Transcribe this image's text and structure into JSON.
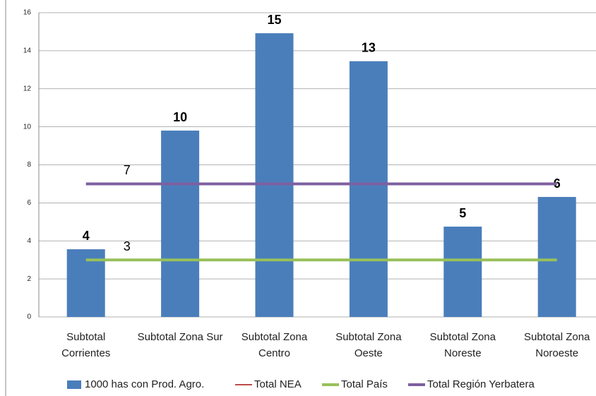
{
  "chart_data": {
    "type": "bar",
    "categories": [
      [
        "Subtotal",
        "Corrientes"
      ],
      [
        "Subtotal Zona Sur"
      ],
      [
        "Subtotal Zona",
        "Centro"
      ],
      [
        "Subtotal Zona",
        "Oeste"
      ],
      [
        "Subtotal Zona",
        "Noreste"
      ],
      [
        "Subtotal Zona",
        "Noroeste"
      ]
    ],
    "series": [
      {
        "name": "1000 has con Prod. Agro.",
        "type": "bar",
        "color": "#4a7ebb",
        "values": [
          3.56,
          9.8,
          14.92,
          13.45,
          4.75,
          6.31
        ],
        "value_labels": [
          "4",
          "10",
          "15",
          "13",
          "5",
          "6"
        ]
      },
      {
        "name": "Total NEA",
        "type": "line",
        "color": "#be4b48",
        "values": [
          null,
          null,
          null,
          null,
          null,
          null
        ]
      },
      {
        "name": "Total País",
        "type": "line",
        "color": "#98c05a",
        "values": [
          3,
          3,
          3,
          3,
          3,
          3
        ],
        "value_labels": [
          "3",
          null,
          null,
          null,
          null,
          null
        ]
      },
      {
        "name": "Total Región Yerbatera",
        "type": "line",
        "color": "#7d60a0",
        "values": [
          7,
          7,
          7,
          7,
          7,
          7
        ],
        "value_labels": [
          "7",
          null,
          null,
          null,
          null,
          null
        ]
      }
    ],
    "ylim": [
      0,
      16
    ],
    "yticks": [
      0,
      2,
      4,
      6,
      8,
      10,
      12,
      14,
      16
    ],
    "grid": true,
    "legend": "bottom"
  }
}
